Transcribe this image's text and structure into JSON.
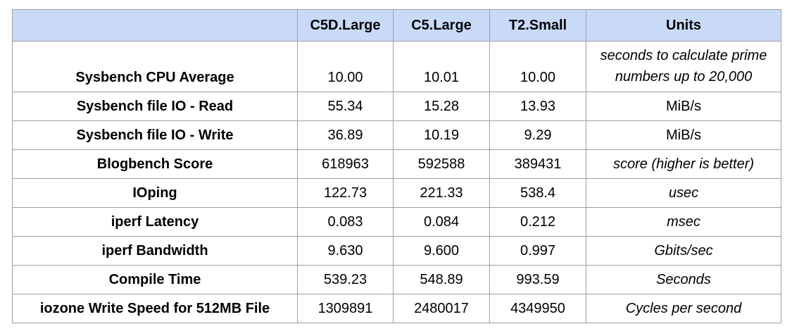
{
  "table": {
    "header": [
      "",
      "C5D.Large",
      "C5.Large",
      "T2.Small",
      "Units"
    ],
    "rows": [
      [
        "Sysbench CPU Average",
        "10.00",
        "10.01",
        "10.00",
        "seconds to calculate prime numbers up to 20,000"
      ],
      [
        "Sysbench file IO - Read",
        "55.34",
        "15.28",
        "13.93",
        "MiB/s"
      ],
      [
        "Sysbench file IO - Write",
        "36.89",
        "10.19",
        "9.29",
        "MiB/s"
      ],
      [
        "Blogbench Score",
        "618963",
        "592588",
        "389431",
        "score (higher is better)"
      ],
      [
        "IOping",
        "122.73",
        "221.33",
        "538.4",
        "usec"
      ],
      [
        "iperf Latency",
        "0.083",
        "0.084",
        "0.212",
        "msec"
      ],
      [
        "iperf Bandwidth",
        "9.630",
        "9.600",
        "0.997",
        "Gbits/sec"
      ],
      [
        "Compile Time",
        "539.23",
        "548.89",
        "993.59",
        "Seconds"
      ],
      [
        "iozone Write Speed for 512MB File",
        "1309891",
        "2480017",
        "4349950",
        "Cycles per second"
      ]
    ]
  }
}
